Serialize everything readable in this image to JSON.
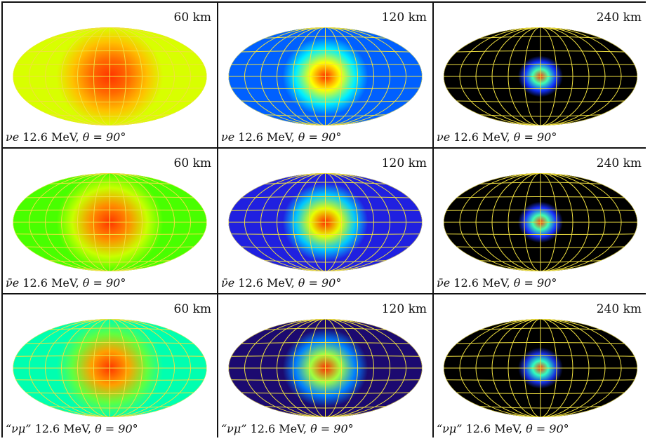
{
  "figure": {
    "panels": [
      {
        "distance": "60 km",
        "species": "νe",
        "energy": "12.6 MeV",
        "angle": "θ = 90°",
        "colors": [
          "#ff3300",
          "#ff6a00",
          "#ffc000",
          "#d8ff00"
        ]
      },
      {
        "distance": "120 km",
        "species": "νe",
        "energy": "12.6 MeV",
        "angle": "θ = 90°",
        "colors": [
          "#ff2a00",
          "#ffff00",
          "#00f0ff",
          "#0060ff"
        ]
      },
      {
        "distance": "240 km",
        "species": "νe",
        "energy": "12.6 MeV",
        "angle": "θ = 90°",
        "colors": [
          "#ff3a00",
          "#40ffb0",
          "#1030ff",
          "#000000"
        ]
      },
      {
        "distance": "60 km",
        "species": "ν̄e",
        "energy": "12.6 MeV",
        "angle": "θ = 90°",
        "colors": [
          "#ff3300",
          "#ff8c00",
          "#c8ff00",
          "#48ff00"
        ]
      },
      {
        "distance": "120 km",
        "species": "ν̄e",
        "energy": "12.6 MeV",
        "angle": "θ = 90°",
        "colors": [
          "#ff2a00",
          "#e8ff00",
          "#00c8ff",
          "#2020e0"
        ]
      },
      {
        "distance": "240 km",
        "species": "ν̄e",
        "energy": "12.6 MeV",
        "angle": "θ = 90°",
        "colors": [
          "#ff3a00",
          "#40ffb0",
          "#1830ff",
          "#000000"
        ]
      },
      {
        "distance": "60 km",
        "species": "“νμ”",
        "energy": "12.6 MeV",
        "angle": "θ = 90°",
        "colors": [
          "#ff3300",
          "#ffa000",
          "#60ff40",
          "#00ffb0"
        ]
      },
      {
        "distance": "120 km",
        "species": "“νμ”",
        "energy": "12.6 MeV",
        "angle": "θ = 90°",
        "colors": [
          "#ff2a00",
          "#a0ff40",
          "#0080ff",
          "#1c0a70"
        ]
      },
      {
        "distance": "240 km",
        "species": "“νμ”",
        "energy": "12.6 MeV",
        "angle": "θ = 90°",
        "colors": [
          "#ff3a00",
          "#30ffc0",
          "#1830e0",
          "#000000"
        ]
      }
    ],
    "grid_color": "#f0e040"
  }
}
